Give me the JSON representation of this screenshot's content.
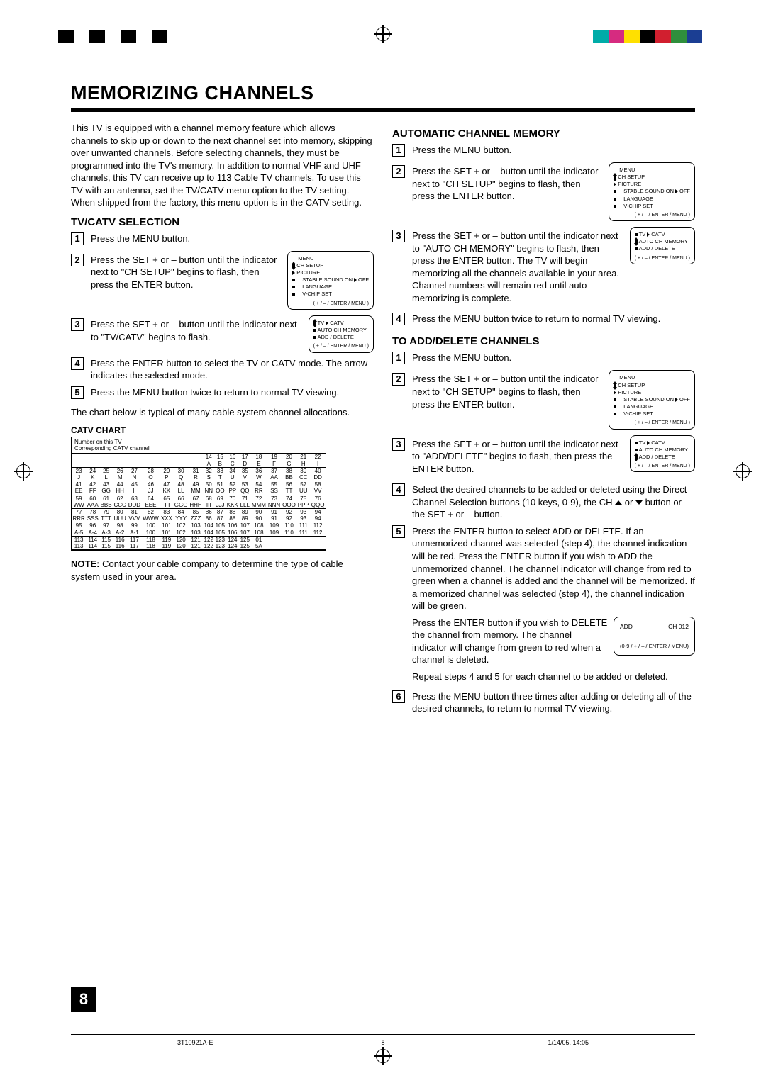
{
  "title": "MEMORIZING CHANNELS",
  "intro": "This TV is equipped with a channel memory feature which allows channels to skip up or down to the next channel set into memory, skipping over unwanted channels. Before selecting channels, they must be programmed into the TV's memory. In addition to normal VHF and UHF channels, this TV can receive up to 113 Cable TV channels. To use this TV with an antenna, set the TV/CATV menu option to the TV setting. When shipped from the factory, this menu option is in the CATV setting.",
  "tvcatv": {
    "heading": "TV/CATV SELECTION",
    "s1": "Press the MENU button.",
    "s2": "Press the SET + or – button until the indicator next to \"CH SETUP\" begins to flash, then press the ENTER button.",
    "s3": "Press the SET + or – button until the indicator next to \"TV/CATV\" begins to flash.",
    "s4": "Press the ENTER button to select the TV or CATV mode. The arrow indicates the selected mode.",
    "s5": "Press the MENU button twice to return to normal TV viewing."
  },
  "chart_intro": "The chart below is typical of many cable system channel allocations.",
  "catv_title": "CATV CHART",
  "catv_header1": "Number on this TV",
  "catv_header2": "Corresponding CATV channel",
  "note": "Contact your cable company to determine the type of cable system used in your area.",
  "note_label": "NOTE:",
  "auto": {
    "heading": "AUTOMATIC CHANNEL MEMORY",
    "s1": "Press the MENU button.",
    "s2": "Press the SET + or – button until the indicator next to \"CH SETUP\" begins to flash, then press the ENTER button.",
    "s3": "Press the SET + or – button until the indicator next to \"AUTO CH MEMORY\" begins to flash, then press the ENTER button. The TV will begin memorizing all the channels available in your area. Channel numbers will remain red until auto memorizing is complete.",
    "s4": "Press the MENU button twice to return to normal TV viewing."
  },
  "adddel": {
    "heading": "TO ADD/DELETE CHANNELS",
    "s1": "Press the MENU button.",
    "s2": "Press the SET + or – button until the indicator next to \"CH SETUP\" begins to flash, then press the ENTER button.",
    "s3": "Press the SET + or – button until the indicator next to \"ADD/DELETE\" begins to flash, then press the ENTER button.",
    "s4": "Select the desired channels to be added or deleted using the Direct Channel Selection buttons (10 keys, 0-9), the CH ",
    "s4b": " button or the SET + or – button.",
    "s5": "Press the ENTER button to select ADD or DELETE. If an unmemorized channel was selected (step 4), the channel indication will be red. Press the ENTER button if you wish to ADD the unmemorized channel. The channel indicator will change from red to green when a channel is added and the channel will be memorized. If a memorized channel was selected (step 4), the channel indication will be green.",
    "s5b": "Press the ENTER button if you wish to DELETE the channel from memory. The channel indicator will change from green to red when a channel is deleted.",
    "s5c": "Repeat steps 4 and 5 for each channel to be added or deleted.",
    "s6": "Press the MENU button three times after adding or deleting all of the desired channels, to return to normal TV viewing."
  },
  "menu_main": {
    "title": "MENU",
    "i1": "CH SETUP",
    "i2": "PICTURE",
    "i3": "STABLE SOUND ON",
    "i3r": "OFF",
    "i4": "LANGUAGE",
    "i5": "V-CHIP SET",
    "foot": "( + / – / ENTER / MENU )"
  },
  "menu_sub": {
    "i1": "TV",
    "i1r": "CATV",
    "i2": "AUTO CH MEMORY",
    "i3": "ADD / DELETE",
    "foot": "( + / – / ENTER / MENU )"
  },
  "addbox": {
    "l": "ADD",
    "r": "CH 012",
    "foot": "(0-9 / + / – / ENTER / MENU)"
  },
  "catv_rows": [
    [
      "",
      "",
      "",
      "",
      "",
      "",
      "",
      "",
      "",
      "14",
      "15",
      "16",
      "17",
      "18",
      "19",
      "20",
      "21",
      "22"
    ],
    [
      "",
      "",
      "",
      "",
      "",
      "",
      "",
      "",
      "",
      "A",
      "B",
      "C",
      "D",
      "E",
      "F",
      "G",
      "H",
      "I"
    ],
    [
      "23",
      "24",
      "25",
      "26",
      "27",
      "28",
      "29",
      "30",
      "31",
      "32",
      "33",
      "34",
      "35",
      "36",
      "37",
      "38",
      "39",
      "40"
    ],
    [
      "J",
      "K",
      "L",
      "M",
      "N",
      "O",
      "P",
      "Q",
      "R",
      "S",
      "T",
      "U",
      "V",
      "W",
      "AA",
      "BB",
      "CC",
      "DD"
    ],
    [
      "41",
      "42",
      "43",
      "44",
      "45",
      "46",
      "47",
      "48",
      "49",
      "50",
      "51",
      "52",
      "53",
      "54",
      "55",
      "56",
      "57",
      "58"
    ],
    [
      "EE",
      "FF",
      "GG",
      "HH",
      "II",
      "JJ",
      "KK",
      "LL",
      "MM",
      "NN",
      "OO",
      "PP",
      "QQ",
      "RR",
      "SS",
      "TT",
      "UU",
      "VV"
    ],
    [
      "59",
      "60",
      "61",
      "62",
      "63",
      "64",
      "65",
      "66",
      "67",
      "68",
      "69",
      "70",
      "71",
      "72",
      "73",
      "74",
      "75",
      "76"
    ],
    [
      "WW",
      "AAA",
      "BBB",
      "CCC",
      "DDD",
      "EEE",
      "FFF",
      "GGG",
      "HHH",
      "III",
      "JJJ",
      "KKK",
      "LLL",
      "MMM",
      "NNN",
      "OOO",
      "PPP",
      "QQQ"
    ],
    [
      "77",
      "78",
      "79",
      "80",
      "81",
      "82",
      "83",
      "84",
      "85",
      "86",
      "87",
      "88",
      "89",
      "90",
      "91",
      "92",
      "93",
      "94"
    ],
    [
      "RRR",
      "SSS",
      "TTT",
      "UUU",
      "VVV",
      "WWW",
      "XXX",
      "YYY",
      "ZZZ",
      "86",
      "87",
      "88",
      "89",
      "90",
      "91",
      "92",
      "93",
      "94"
    ],
    [
      "95",
      "96",
      "97",
      "98",
      "99",
      "100",
      "101",
      "102",
      "103",
      "104",
      "105",
      "106",
      "107",
      "108",
      "109",
      "110",
      "111",
      "112"
    ],
    [
      "A-5",
      "A-4",
      "A-3",
      "A-2",
      "A-1",
      "100",
      "101",
      "102",
      "103",
      "104",
      "105",
      "106",
      "107",
      "108",
      "109",
      "110",
      "111",
      "112"
    ],
    [
      "113",
      "114",
      "115",
      "116",
      "117",
      "118",
      "119",
      "120",
      "121",
      "122",
      "123",
      "124",
      "125",
      "01",
      "",
      "",
      "",
      ""
    ],
    [
      "113",
      "114",
      "115",
      "116",
      "117",
      "118",
      "119",
      "120",
      "121",
      "122",
      "123",
      "124",
      "125",
      "5A",
      "",
      "",
      "",
      ""
    ]
  ],
  "reg_colors_bw": [
    "#000",
    "#fff",
    "#000",
    "#fff",
    "#000",
    "#fff",
    "#000"
  ],
  "reg_colors": [
    "#00aca8",
    "#d62b80",
    "#ffe000",
    "#000",
    "#d11f2f",
    "#2f8f3c",
    "#1b3e93"
  ],
  "page_number": "8",
  "foot_left": "3T10921A-E",
  "foot_mid": "8",
  "foot_right": "1/14/05, 14:05",
  "or_word": " or "
}
